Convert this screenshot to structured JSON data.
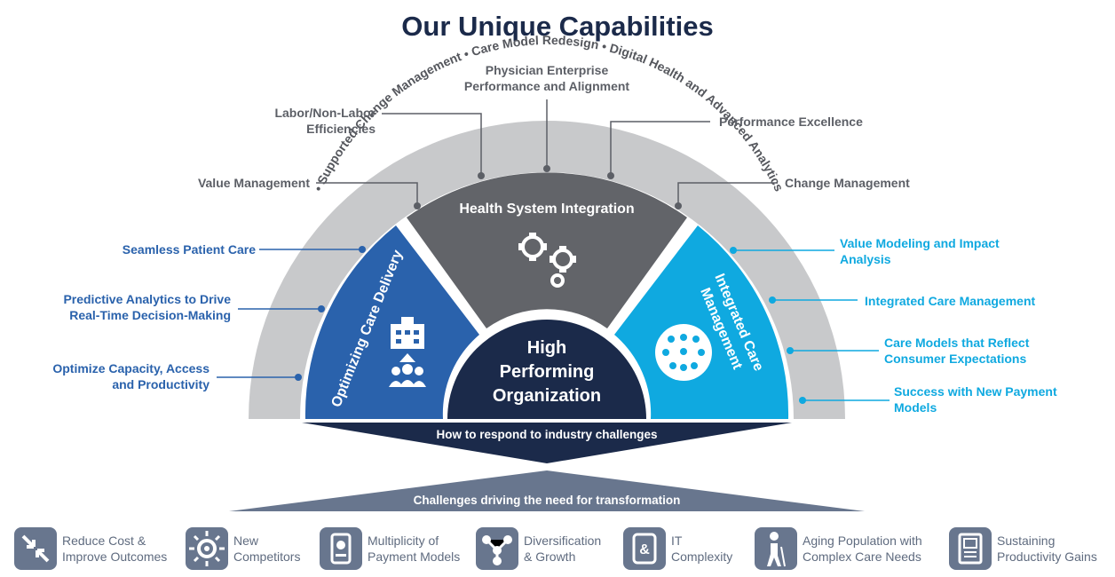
{
  "title": "Our Unique Capabilities",
  "arc_text": {
    "left": "Supported Change Management",
    "middle": "Care Model Redesign",
    "right": "Digital Health and Advanced Analytics"
  },
  "center": {
    "line1": "High",
    "line2": "Performing",
    "line3": "Organization"
  },
  "segments": {
    "left": "Optimizing Care Delivery",
    "top": "Health System Integration",
    "right_line1": "Integrated Care",
    "right_line2": "Management"
  },
  "gray_labels": {
    "physician_l1": "Physician Enterprise",
    "physician_l2": "Performance and Alignment",
    "labor_l1": "Labor/Non-Labor",
    "labor_l2": "Efficiencies",
    "performance": "Performance Excellence",
    "value_mgmt": "Value Management",
    "change_mgmt": "Change Management"
  },
  "blue_labels": {
    "seamless": "Seamless Patient Care",
    "predictive_l1": "Predictive Analytics to Drive",
    "predictive_l2": "Real-Time Decision-Making",
    "capacity_l1": "Optimize Capacity, Access",
    "capacity_l2": "and Productivity"
  },
  "cyan_labels": {
    "value_modeling_l1": "Value Modeling and Impact",
    "value_modeling_l2": "Analysis",
    "integrated": "Integrated Care Management",
    "care_models_l1": "Care Models that Reflect",
    "care_models_l2": "Consumer Expectations",
    "payment_l1": "Success with New Payment",
    "payment_l2": "Models"
  },
  "banners": {
    "respond": "How to respond to industry challenges",
    "challenges": "Challenges driving the need for transformation"
  },
  "challenges": [
    {
      "l1": "Reduce Cost &",
      "l2": "Improve Outcomes",
      "icon": "arrows-in-icon"
    },
    {
      "l1": "New",
      "l2": "Competitors",
      "icon": "gear-arrows-icon"
    },
    {
      "l1": "Multiplicity of",
      "l2": "Payment Models",
      "icon": "payment-phone-icon"
    },
    {
      "l1": "Diversification",
      "l2": "& Growth",
      "icon": "network-nodes-icon"
    },
    {
      "l1": "IT",
      "l2": "Complexity",
      "icon": "tablet-icon"
    },
    {
      "l1": "Aging Population with",
      "l2": "Complex Care Needs",
      "icon": "elderly-person-icon"
    },
    {
      "l1": "Sustaining",
      "l2": "Productivity Gains",
      "icon": "report-document-icon"
    }
  ],
  "colors": {
    "navy": "#1b2a4a",
    "blue": "#2a62ac",
    "cyan": "#0fa9e0",
    "gray_segment": "#626469",
    "arc": "#c8c9cb",
    "icon_bg": "#68768e"
  }
}
